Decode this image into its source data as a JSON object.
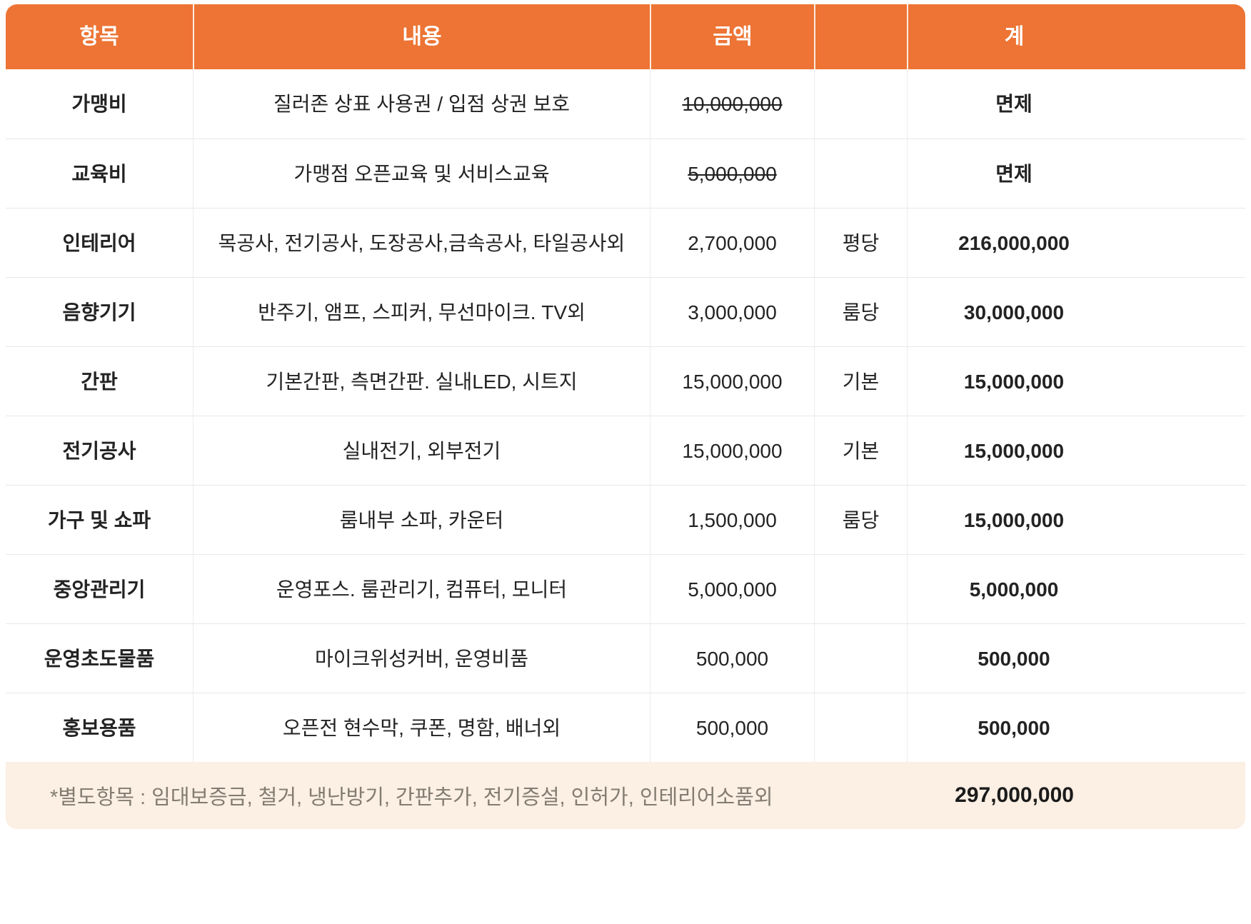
{
  "table": {
    "header": {
      "item": "항목",
      "content": "내용",
      "amount": "금액",
      "unit": "",
      "total": "계"
    },
    "rows": [
      {
        "item": "가맹비",
        "content": "질러존 상표 사용권 / 입점 상권 보호",
        "amount": "10,000,000",
        "amount_struck": true,
        "unit": "",
        "total": "면제",
        "total_style": "exempt"
      },
      {
        "item": "교육비",
        "content": "가맹점 오픈교육 및 서비스교육",
        "amount": "5,000,000",
        "amount_struck": true,
        "unit": "",
        "total": "면제",
        "total_style": "exempt"
      },
      {
        "item": "인테리어",
        "content": "목공사, 전기공사, 도장공사,금속공사, 타일공사외",
        "amount": "2,700,000",
        "amount_struck": false,
        "unit": "평당",
        "total": "216,000,000",
        "total_style": "orange"
      },
      {
        "item": "음향기기",
        "content": "반주기, 앰프, 스피커, 무선마이크. TV외",
        "amount": "3,000,000",
        "amount_struck": false,
        "unit": "룸당",
        "total": "30,000,000",
        "total_style": "orange"
      },
      {
        "item": "간판",
        "content": "기본간판, 측면간판. 실내LED, 시트지",
        "amount": "15,000,000",
        "amount_struck": false,
        "unit": "기본",
        "total": "15,000,000",
        "total_style": "orange"
      },
      {
        "item": "전기공사",
        "content": "실내전기, 외부전기",
        "amount": "15,000,000",
        "amount_struck": false,
        "unit": "기본",
        "total": "15,000,000",
        "total_style": "orange"
      },
      {
        "item": "가구 및 쇼파",
        "content": "룸내부 소파, 카운터",
        "amount": "1,500,000",
        "amount_struck": false,
        "unit": "룸당",
        "total": "15,000,000",
        "total_style": "orange"
      },
      {
        "item": "중앙관리기",
        "content": "운영포스. 룸관리기, 컴퓨터, 모니터",
        "amount": "5,000,000",
        "amount_struck": false,
        "unit": "",
        "total": "5,000,000",
        "total_style": "orange"
      },
      {
        "item": "운영초도물품",
        "content": "마이크위성커버, 운영비품",
        "amount": "500,000",
        "amount_struck": false,
        "unit": "",
        "total": "500,000",
        "total_style": "orange"
      },
      {
        "item": "홍보용품",
        "content": "오픈전 현수막, 쿠폰, 명함, 배너외",
        "amount": "500,000",
        "amount_struck": false,
        "unit": "",
        "total": "500,000",
        "total_style": "orange"
      }
    ],
    "footer": {
      "note": "*별도항목 : 임대보증금, 철거, 냉난방기, 간판추가, 전기증설, 인허가, 인테리어소품외",
      "grand_total": "297,000,000"
    },
    "colors": {
      "header_bg": "#ED7434",
      "total_orange": "#E8712C",
      "exempt_blue": "#3E8EE5",
      "unit_gray": "#ABABAB",
      "footer_bg": "#FCEFE3"
    }
  }
}
